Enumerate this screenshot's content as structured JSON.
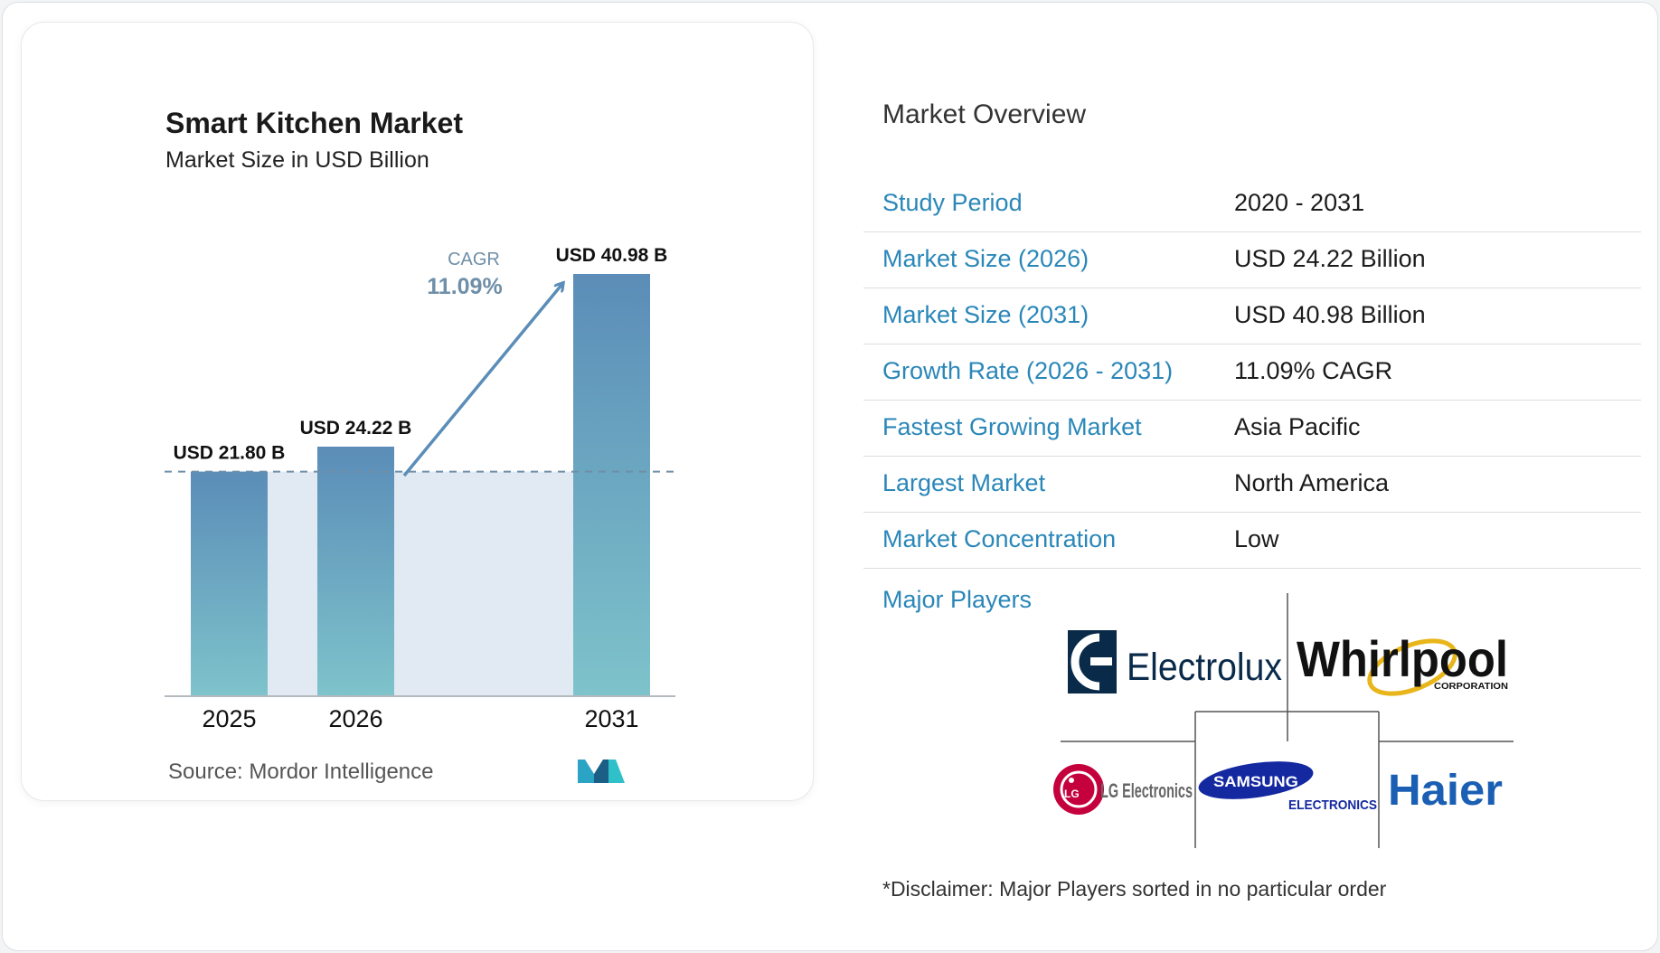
{
  "chart_data": {
    "type": "bar",
    "title": "Smart Kitchen Market",
    "subtitle": "Market Size in USD Billion",
    "categories": [
      "2025",
      "2026",
      "2031"
    ],
    "values": [
      21.8,
      24.22,
      40.98
    ],
    "value_labels": [
      "USD 21.80 B",
      "USD 24.22 B",
      "USD 40.98 B"
    ],
    "ylim": [
      0,
      40.98
    ],
    "cagr_label": "CAGR",
    "cagr_value": "11.09%",
    "colors": {
      "bar_top": "#5b8db8",
      "bar_bottom": "#7ec3cb",
      "band": "#e1eaf2",
      "arrow": "#5b8db8",
      "dashed": "#6f8fa8"
    }
  },
  "source": "Source:  Mordor Intelligence",
  "overview": {
    "title": "Market Overview",
    "rows": [
      {
        "label": "Study Period",
        "value": "2020 - 2031"
      },
      {
        "label": "Market Size (2026)",
        "value": "USD 24.22 Billion"
      },
      {
        "label": "Market Size (2031)",
        "value": "USD 40.98 Billion"
      },
      {
        "label": "Growth Rate (2026 - 2031)",
        "value": "11.09% CAGR"
      },
      {
        "label": "Fastest Growing Market",
        "value": "Asia Pacific"
      },
      {
        "label": "Largest Market",
        "value": "North America"
      },
      {
        "label": "Market Concentration",
        "value": "Low"
      }
    ]
  },
  "major_players": {
    "label": "Major Players",
    "logos": [
      {
        "name": "Electrolux",
        "text": "Electrolux"
      },
      {
        "name": "Whirlpool",
        "text": "Whirlpool",
        "subtext": "CORPORATION"
      },
      {
        "name": "LG Electronics",
        "text": "LG Electronics",
        "mark": "LG"
      },
      {
        "name": "Samsung Electronics",
        "text": "SAMSUNG",
        "subtext": "ELECTRONICS"
      },
      {
        "name": "Haier",
        "text": "Haier"
      }
    ]
  },
  "disclaimer": "*Disclaimer: Major Players sorted in no particular order",
  "icons": [
    "mordor-intelligence-logo-icon",
    "electrolux-logo-icon",
    "whirlpool-logo-icon",
    "lg-logo-icon",
    "samsung-logo-icon",
    "haier-logo-icon",
    "cagr-arrow-icon"
  ]
}
